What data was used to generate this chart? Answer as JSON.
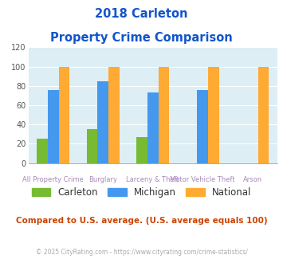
{
  "title_line1": "2018 Carleton",
  "title_line2": "Property Crime Comparison",
  "carleton": [
    25,
    35,
    27,
    0,
    0
  ],
  "michigan": [
    76,
    85,
    73,
    76,
    0
  ],
  "national": [
    100,
    100,
    100,
    100,
    100
  ],
  "colors": {
    "carleton": "#77bb33",
    "michigan": "#4499ee",
    "national": "#ffaa33"
  },
  "ylim": [
    0,
    120
  ],
  "yticks": [
    0,
    20,
    40,
    60,
    80,
    100,
    120
  ],
  "title_color": "#1155cc",
  "xlabel_top_labels": [
    "",
    "Burglary",
    "",
    "Motor Vehicle Theft",
    ""
  ],
  "xlabel_bottom_labels": [
    "All Property Crime",
    "",
    "Larceny & Theft",
    "",
    "Arson"
  ],
  "xlabel_color": "#aa88bb",
  "legend_labels": [
    "Carleton",
    "Michigan",
    "National"
  ],
  "legend_text_color": "#333333",
  "subtitle_text": "Compared to U.S. average. (U.S. average equals 100)",
  "subtitle_color": "#cc4400",
  "footer_text": "© 2025 CityRating.com - https://www.cityrating.com/crime-statistics/",
  "footer_color": "#aaaaaa",
  "bg_color": "#ddeef5"
}
